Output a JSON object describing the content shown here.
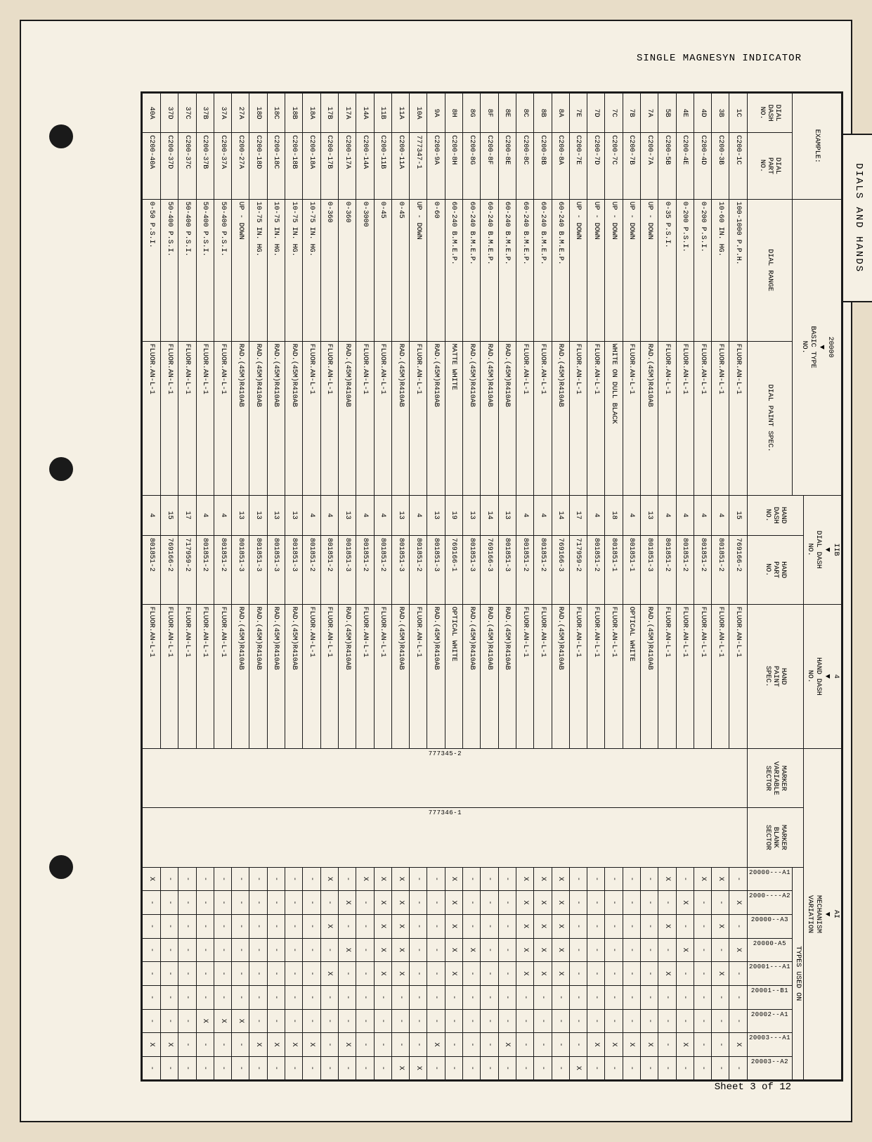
{
  "header": "SINGLE MAGNESYN INDICATOR",
  "footer_sheet": "Sheet 3 of 12",
  "tab_label": "DIALS AND HANDS",
  "top_header": {
    "example": "EXAMPLE:",
    "basic_type": "20000",
    "basic_type_sub": "BASIC TYPE\nNO.",
    "iib": "IIB",
    "dial_dash": "DIAL DASH\nNO.",
    "four": "4",
    "hand_dash": "HAND DASH\nNO.",
    "ai": "AI",
    "mechanism_variation": "MECHANISM\nVARIATION"
  },
  "col_headers": {
    "dial_dash_no": "DIAL\nDASH\nNO.",
    "dial_part_no": "DIAL\nPART\nNO.",
    "dial_range": "DIAL RANGE",
    "dial_paint_spec": "DIAL PAINT SPEC.",
    "hand_dash_no": "HAND\nDASH\nNO.",
    "hand_part_no": "HAND\nPART\nNO.",
    "hand_paint_spec": "HAND\nPAINT\nSPEC.",
    "marker_variable": "MARKER\nVARIABLE\nSECTOR",
    "marker_blank": "MARKER\nBLANK\nSECTOR",
    "types_used_on": "TYPES USED ON"
  },
  "type_columns": [
    "20000---A1",
    "2000----A2",
    "20000--A3",
    "20000-A5",
    "20001---A1",
    "20001--B1",
    "20002--A1",
    "20003---A1",
    "20003--A2"
  ],
  "marker_var_val": "777345-2",
  "marker_blank_val": "777346-1",
  "rows": [
    {
      "dd": "1C",
      "dp": "C200-1C",
      "range": "100-1000 P.P.H.",
      "dpspec": "FLUOR.AN-L-1",
      "hd": "15",
      "hp": "769166-2",
      "hpspec": "FLUOR.AN-L-1",
      "t": [
        "-",
        "X",
        "-",
        "X",
        "-",
        "-",
        "-",
        "X",
        "-"
      ]
    },
    {
      "dd": "3B",
      "dp": "C200-3B",
      "range": "10-60 IN. HG.",
      "dpspec": "FLUOR.AN-L-1",
      "hd": "4",
      "hp": "801851-2",
      "hpspec": "FLUOR.AN-L-1",
      "t": [
        "X",
        "-",
        "X",
        "-",
        "X",
        "-",
        "-",
        "-",
        "-"
      ]
    },
    {
      "dd": "4D",
      "dp": "C200-4D",
      "range": "0-200 P.S.I.",
      "dpspec": "FLUOR.AN-L-1",
      "hd": "4",
      "hp": "801851-2",
      "hpspec": "FLUOR.AN-L-1",
      "t": [
        "X",
        "-",
        "-",
        "-",
        "-",
        "-",
        "-",
        "-",
        "-"
      ]
    },
    {
      "dd": "4E",
      "dp": "C200-4E",
      "range": "0-200 P.S.I.",
      "dpspec": "FLUOR.AN-L-1",
      "hd": "4",
      "hp": "801851-2",
      "hpspec": "FLUOR.AN-L-1",
      "t": [
        "-",
        "X",
        "-",
        "X",
        "-",
        "-",
        "-",
        "X",
        "-"
      ]
    },
    {
      "dd": "5B",
      "dp": "C200-5B",
      "range": "0-35 P.S.I.",
      "dpspec": "FLUOR.AN-L-1",
      "hd": "4",
      "hp": "801851-2",
      "hpspec": "FLUOR.AN-L-1",
      "t": [
        "X",
        "-",
        "X",
        "-",
        "X",
        "-",
        "-",
        "-",
        "-"
      ]
    },
    {
      "dd": "7A",
      "dp": "C200-7A",
      "range": "UP - DOWN",
      "dpspec": "RAD.(45M)R410AB",
      "hd": "13",
      "hp": "801851-3",
      "hpspec": "RAD.(45M)R410AB",
      "t": [
        "-",
        "-",
        "-",
        "-",
        "-",
        "-",
        "-",
        "X",
        "-"
      ]
    },
    {
      "dd": "7B",
      "dp": "C200-7B",
      "range": "UP - DOWN",
      "dpspec": "FLUOR.AN-L-1",
      "hd": "4",
      "hp": "801851-1",
      "hpspec": "OPTICAL WHITE",
      "t": [
        "-",
        "-",
        "-",
        "-",
        "-",
        "-",
        "-",
        "X",
        "-"
      ]
    },
    {
      "dd": "7C",
      "dp": "C200-7C",
      "range": "UP - DOWN",
      "dpspec": "WHITE ON DULL BLACK",
      "hd": "18",
      "hp": "801851-1",
      "hpspec": "FLUOR.AN-L-1",
      "t": [
        "-",
        "-",
        "-",
        "-",
        "-",
        "-",
        "-",
        "X",
        "-"
      ]
    },
    {
      "dd": "7D",
      "dp": "C200-7D",
      "range": "UP - DOWN",
      "dpspec": "FLUOR.AN-L-1",
      "hd": "4",
      "hp": "801851-2",
      "hpspec": "FLUOR.AN-L-1",
      "t": [
        "-",
        "-",
        "-",
        "-",
        "-",
        "-",
        "-",
        "X",
        "-"
      ]
    },
    {
      "dd": "7E",
      "dp": "C200-7E",
      "range": "UP - DOWN",
      "dpspec": "FLUOR.AN-L-1",
      "hd": "17",
      "hp": "717959-2",
      "hpspec": "FLUOR.AN-L-1",
      "t": [
        "-",
        "-",
        "-",
        "-",
        "-",
        "-",
        "-",
        "-",
        "X"
      ]
    },
    {
      "dd": "8A",
      "dp": "C200-8A",
      "range": "60-240 B.M.E.P.",
      "dpspec": "RAD.(45M)R410AB",
      "hd": "14",
      "hp": "769166-3",
      "hpspec": "RAD.(45M)R410AB",
      "t": [
        "X",
        "X",
        "X",
        "X",
        "X",
        "-",
        "-",
        "-",
        "-"
      ]
    },
    {
      "dd": "8B",
      "dp": "C200-8B",
      "range": "60-240 B.M.E.P.",
      "dpspec": "FLUOR.AN-L-1",
      "hd": "4",
      "hp": "801851-2",
      "hpspec": "FLUOR.AN-L-1",
      "t": [
        "X",
        "X",
        "X",
        "X",
        "X",
        "-",
        "-",
        "-",
        "-"
      ]
    },
    {
      "dd": "8C",
      "dp": "C200-8C",
      "range": "60-240 B.M.E.P.",
      "dpspec": "FLUOR.AN-L-1",
      "hd": "4",
      "hp": "801851-2",
      "hpspec": "FLUOR.AN-L-1",
      "t": [
        "X",
        "X",
        "X",
        "X",
        "X",
        "-",
        "-",
        "-",
        "-"
      ]
    },
    {
      "dd": "8E",
      "dp": "C200-8E",
      "range": "60-240 B.M.E.P.",
      "dpspec": "RAD.(45M)R410AB",
      "hd": "13",
      "hp": "801851-3",
      "hpspec": "RAD.(45M)R410AB",
      "t": [
        "-",
        "-",
        "-",
        "-",
        "-",
        "-",
        "-",
        "X",
        "-"
      ]
    },
    {
      "dd": "8F",
      "dp": "C200-8F",
      "range": "60-240 B.M.E.P.",
      "dpspec": "RAD.(45M)R410AB",
      "hd": "14",
      "hp": "769166-3",
      "hpspec": "RAD.(45M)R410AB",
      "t": [
        "-",
        "-",
        "-",
        "-",
        "-",
        "-",
        "-",
        "-",
        "-"
      ]
    },
    {
      "dd": "8G",
      "dp": "C200-8G",
      "range": "60-240 B.M.E.P.",
      "dpspec": "RAD.(45M)R410AB",
      "hd": "13",
      "hp": "801851-3",
      "hpspec": "RAD.(45M)R410AB",
      "t": [
        "-",
        "-",
        "-",
        "X",
        "-",
        "-",
        "-",
        "-",
        "-"
      ]
    },
    {
      "dd": "8H",
      "dp": "C200-8H",
      "range": "60-240 B.M.E.P.",
      "dpspec": "MATTE WHITE",
      "hd": "19",
      "hp": "769166-1",
      "hpspec": "OPTICAL WHITE",
      "t": [
        "X",
        "X",
        "X",
        "X",
        "X",
        "-",
        "-",
        "-",
        "-"
      ]
    },
    {
      "dd": "9A",
      "dp": "C200-9A",
      "range": "0-60",
      "dpspec": "RAD.(45M)R410AB",
      "hd": "13",
      "hp": "801851-3",
      "hpspec": "RAD.(45M)R410AB",
      "t": [
        "-",
        "-",
        "-",
        "-",
        "-",
        "-",
        "-",
        "X",
        "-"
      ]
    },
    {
      "dd": "10A",
      "dp": "777347-1",
      "range": "UP - DOWN",
      "dpspec": "FLUOR.AN-L-1",
      "hd": "4",
      "hp": "801851-2",
      "hpspec": "FLUOR.AN-L-1",
      "t": [
        "-",
        "-",
        "-",
        "-",
        "-",
        "-",
        "-",
        "-",
        "X"
      ]
    },
    {
      "dd": "11A",
      "dp": "C200-11A",
      "range": "0-45",
      "dpspec": "RAD.(45M)R410AB",
      "hd": "13",
      "hp": "801851-3",
      "hpspec": "RAD.(45M)R410AB",
      "t": [
        "X",
        "X",
        "X",
        "X",
        "X",
        "-",
        "-",
        "-",
        "X"
      ]
    },
    {
      "dd": "11B",
      "dp": "C200-11B",
      "range": "0-45",
      "dpspec": "FLUOR.AN-L-1",
      "hd": "4",
      "hp": "801851-2",
      "hpspec": "FLUOR.AN-L-1",
      "t": [
        "X",
        "X",
        "X",
        "X",
        "X",
        "-",
        "-",
        "-",
        "-"
      ]
    },
    {
      "dd": "14A",
      "dp": "C200-14A",
      "range": "0-3000",
      "dpspec": "FLUOR.AN-L-1",
      "hd": "4",
      "hp": "801851-2",
      "hpspec": "FLUOR.AN-L-1",
      "t": [
        "X",
        "-",
        "-",
        "-",
        "-",
        "-",
        "-",
        "-",
        "-"
      ]
    },
    {
      "dd": "17A",
      "dp": "C200-17A",
      "range": "0-360",
      "dpspec": "RAD.(45M)R410AB",
      "hd": "13",
      "hp": "801851-3",
      "hpspec": "RAD.(45M)R410AB",
      "t": [
        "-",
        "X",
        "-",
        "X",
        "-",
        "-",
        "-",
        "X",
        "-"
      ]
    },
    {
      "dd": "17B",
      "dp": "C200-17B",
      "range": "0-360",
      "dpspec": "FLUOR.AN-L-1",
      "hd": "4",
      "hp": "801851-2",
      "hpspec": "FLUOR.AN-L-1",
      "t": [
        "X",
        "-",
        "X",
        "-",
        "X",
        "-",
        "-",
        "-",
        "-"
      ]
    },
    {
      "dd": "18A",
      "dp": "C200-18A",
      "range": "10-75 IN. HG.",
      "dpspec": "FLUOR.AN-L-1",
      "hd": "4",
      "hp": "801851-2",
      "hpspec": "FLUOR.AN-L-1",
      "t": [
        "-",
        "-",
        "-",
        "-",
        "-",
        "-",
        "-",
        "X",
        "-"
      ]
    },
    {
      "dd": "18B",
      "dp": "C200-18B",
      "range": "10-75 IN. HG.",
      "dpspec": "RAD.(45M)R410AB",
      "hd": "13",
      "hp": "801851-3",
      "hpspec": "RAD.(45M)R410AB",
      "t": [
        "-",
        "-",
        "-",
        "-",
        "-",
        "-",
        "-",
        "X",
        "-"
      ]
    },
    {
      "dd": "18C",
      "dp": "C200-18C",
      "range": "10-75 IN. HG.",
      "dpspec": "RAD.(45M)R410AB",
      "hd": "13",
      "hp": "801851-3",
      "hpspec": "RAD.(45M)R410AB",
      "t": [
        "-",
        "-",
        "-",
        "-",
        "-",
        "-",
        "-",
        "X",
        "-"
      ]
    },
    {
      "dd": "18D",
      "dp": "C200-18D",
      "range": "10-75 IN. HG.",
      "dpspec": "RAD.(45M)R410AB",
      "hd": "13",
      "hp": "801851-3",
      "hpspec": "RAD.(45M)R410AB",
      "t": [
        "-",
        "-",
        "-",
        "-",
        "-",
        "-",
        "-",
        "X",
        "-"
      ]
    },
    {
      "dd": "27A",
      "dp": "C200-27A",
      "range": "UP - DOWN",
      "dpspec": "RAD.(45M)R410AB",
      "hd": "13",
      "hp": "801851-3",
      "hpspec": "RAD.(45M)R410AB",
      "t": [
        "-",
        "-",
        "-",
        "-",
        "-",
        "-",
        "X",
        "-",
        "-"
      ]
    },
    {
      "dd": "37A",
      "dp": "C200-37A",
      "range": "50-400 P.S.I.",
      "dpspec": "FLUOR.AN-L-1",
      "hd": "4",
      "hp": "801851-2",
      "hpspec": "FLUOR.AN-L-1",
      "t": [
        "-",
        "-",
        "-",
        "-",
        "-",
        "-",
        "X",
        "-",
        "-"
      ]
    },
    {
      "dd": "37B",
      "dp": "C200-37B",
      "range": "50-400 P.S.I.",
      "dpspec": "FLUOR.AN-L-1",
      "hd": "4",
      "hp": "801851-2",
      "hpspec": "FLUOR.AN-L-1",
      "t": [
        "-",
        "-",
        "-",
        "-",
        "-",
        "-",
        "X",
        "-",
        "-"
      ]
    },
    {
      "dd": "37C",
      "dp": "C200-37C",
      "range": "50-400 P.S.I.",
      "dpspec": "FLUOR.AN-L-1",
      "hd": "17",
      "hp": "717959-2",
      "hpspec": "FLUOR.AN-L-1",
      "t": [
        "-",
        "-",
        "-",
        "-",
        "-",
        "-",
        "-",
        "-",
        "-"
      ]
    },
    {
      "dd": "37D",
      "dp": "C200-37D",
      "range": "50-400 P.S.I.",
      "dpspec": "FLUOR.AN-L-1",
      "hd": "15",
      "hp": "769166-2",
      "hpspec": "FLUOR.AN-L-1",
      "t": [
        "-",
        "-",
        "-",
        "-",
        "-",
        "-",
        "-",
        "X",
        "-"
      ]
    },
    {
      "dd": "40A",
      "dp": "C200-40A",
      "range": "0-50 P.S.I.",
      "dpspec": "FLUOR.AN-L-1",
      "hd": "4",
      "hp": "801851-2",
      "hpspec": "FLUOR.AN-L-1",
      "t": [
        "X",
        "-",
        "-",
        "-",
        "-",
        "-",
        "-",
        "X",
        "-"
      ]
    }
  ]
}
